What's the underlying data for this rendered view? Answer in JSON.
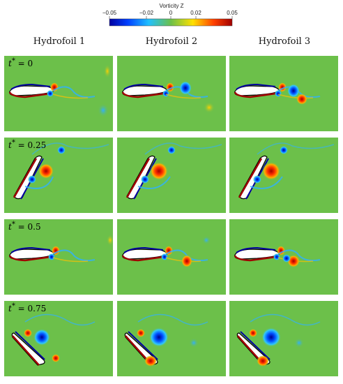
{
  "colorbar": {
    "title": "Vorticity Z",
    "ticks": [
      "−0.05",
      "−0.02",
      "0",
      "0.02",
      "0.05"
    ],
    "colors": [
      "#0000a0",
      "#0050ff",
      "#30c0ff",
      "#6cc04a",
      "#ffe000",
      "#ff5000",
      "#a00000"
    ]
  },
  "columns": [
    "Hydrofoil 1",
    "Hydrofoil 2",
    "Hydrofoil 3"
  ],
  "rows": [
    {
      "var": "t",
      "sup": "*",
      "value": "= 0"
    },
    {
      "var": "t",
      "sup": "*",
      "value": "= 0.25"
    },
    {
      "var": "t",
      "sup": "*",
      "value": "= 0.5"
    },
    {
      "var": "t",
      "sup": "*",
      "value": "= 0.75"
    }
  ],
  "background_color": "#6cc04a"
}
